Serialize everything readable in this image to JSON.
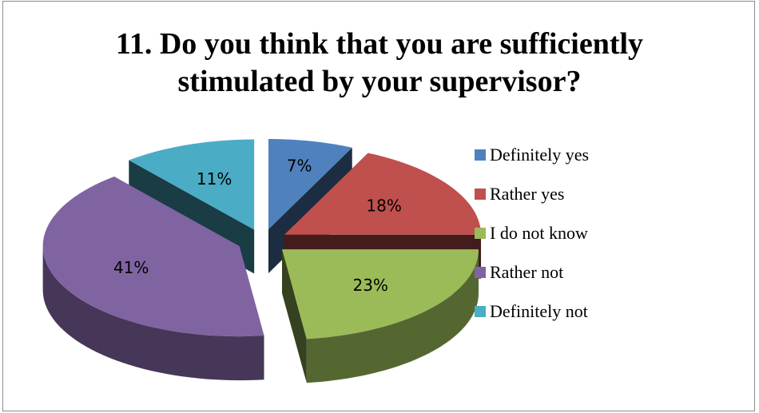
{
  "chart_data": {
    "type": "pie",
    "title_lines": [
      "11. Do you think that you are sufficiently",
      "stimulated by your supervisor?"
    ],
    "three_d": true,
    "exploded": true,
    "legend_position": "right",
    "slices": [
      {
        "name": "Definitely yes",
        "value": 7,
        "label": "7%",
        "color": "#4f81bd"
      },
      {
        "name": "Rather yes",
        "value": 18,
        "label": "18%",
        "color": "#c0504d"
      },
      {
        "name": "I do not know",
        "value": 23,
        "label": "23%",
        "color": "#9bbb59"
      },
      {
        "name": "Rather not",
        "value": 41,
        "label": "41%",
        "color": "#8064a2"
      },
      {
        "name": "Definitely not",
        "value": 11,
        "label": "11%",
        "color": "#4bacc6"
      }
    ]
  }
}
